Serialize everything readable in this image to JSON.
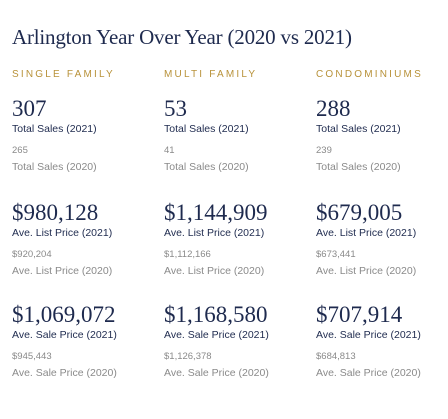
{
  "header": {
    "title": "Arlington Year Over Year (2020 vs 2021)"
  },
  "columns": [
    {
      "name": "SINGLE FAMILY",
      "stats": [
        {
          "value_2021": "307",
          "label_2021": "Total Sales (2021)",
          "value_2020": "265",
          "label_2020": "Total Sales (2020)"
        },
        {
          "value_2021": "$980,128",
          "label_2021": "Ave. List Price (2021)",
          "value_2020": "$920,204",
          "label_2020": "Ave. List Price (2020)"
        },
        {
          "value_2021": "$1,069,072",
          "label_2021": "Ave. Sale Price (2021)",
          "value_2020": "$945,443",
          "label_2020": "Ave. Sale Price (2020)"
        }
      ]
    },
    {
      "name": "MULTI FAMILY",
      "stats": [
        {
          "value_2021": "53",
          "label_2021": "Total Sales (2021)",
          "value_2020": "41",
          "label_2020": "Total Sales (2020)"
        },
        {
          "value_2021": "$1,144,909",
          "label_2021": "Ave. List Price (2021)",
          "value_2020": "$1,112,166",
          "label_2020": "Ave. List Price (2020)"
        },
        {
          "value_2021": "$1,168,580",
          "label_2021": "Ave. Sale Price (2021)",
          "value_2020": "$1,126,378",
          "label_2020": "Ave. Sale Price (2020)"
        }
      ]
    },
    {
      "name": "CONDOMINIUMS",
      "stats": [
        {
          "value_2021": "288",
          "label_2021": "Total Sales (2021)",
          "value_2020": "239",
          "label_2020": "Total Sales (2020)"
        },
        {
          "value_2021": "$679,005",
          "label_2021": "Ave. List Price (2021)",
          "value_2020": "$673,441",
          "label_2020": "Ave. List Price (2020)"
        },
        {
          "value_2021": "$707,914",
          "label_2021": "Ave. Sale Price (2021)",
          "value_2020": "$684,813",
          "label_2020": "Ave. Sale Price (2020)"
        }
      ]
    }
  ]
}
